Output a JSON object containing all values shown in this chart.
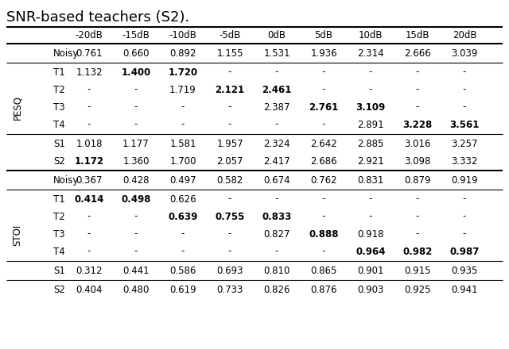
{
  "title": "SNR-based teachers (S2).",
  "col_headers": [
    "-20dB",
    "-15dB",
    "-10dB",
    "-5dB",
    "0dB",
    "5dB",
    "10dB",
    "15dB",
    "20dB"
  ],
  "pesq_section": {
    "noisy": [
      "0.761",
      "0.660",
      "0.892",
      "1.155",
      "1.531",
      "1.936",
      "2.314",
      "2.666",
      "3.039"
    ],
    "T1": [
      "1.132",
      "1.400",
      "1.720",
      "-",
      "-",
      "-",
      "-",
      "-",
      "-"
    ],
    "T2": [
      "-",
      "-",
      "1.719",
      "2.121",
      "2.461",
      "-",
      "-",
      "-",
      "-"
    ],
    "T3": [
      "-",
      "-",
      "-",
      "-",
      "2.387",
      "2.761",
      "3.109",
      "-",
      "-"
    ],
    "T4": [
      "-",
      "-",
      "-",
      "-",
      "-",
      "-",
      "2.891",
      "3.228",
      "3.561"
    ],
    "S1": [
      "1.018",
      "1.177",
      "1.581",
      "1.957",
      "2.324",
      "2.642",
      "2.885",
      "3.016",
      "3.257"
    ],
    "S2": [
      "1.172",
      "1.360",
      "1.700",
      "2.057",
      "2.417",
      "2.686",
      "2.921",
      "3.098",
      "3.332"
    ]
  },
  "stoi_section": {
    "noisy": [
      "0.367",
      "0.428",
      "0.497",
      "0.582",
      "0.674",
      "0.762",
      "0.831",
      "0.879",
      "0.919"
    ],
    "T1": [
      "0.414",
      "0.498",
      "0.626",
      "-",
      "-",
      "-",
      "-",
      "-",
      "-"
    ],
    "T2": [
      "-",
      "-",
      "0.639",
      "0.755",
      "0.833",
      "-",
      "-",
      "-",
      "-"
    ],
    "T3": [
      "-",
      "-",
      "-",
      "-",
      "0.827",
      "0.888",
      "0.918",
      "-",
      "-"
    ],
    "T4": [
      "-",
      "-",
      "-",
      "-",
      "-",
      "-",
      "0.964",
      "0.982",
      "0.987"
    ],
    "S1": [
      "0.312",
      "0.441",
      "0.586",
      "0.693",
      "0.810",
      "0.865",
      "0.901",
      "0.915",
      "0.935"
    ],
    "S2": [
      "0.404",
      "0.480",
      "0.619",
      "0.733",
      "0.826",
      "0.876",
      "0.903",
      "0.925",
      "0.941"
    ]
  },
  "pesq_bold": {
    "T1": [
      false,
      true,
      true,
      false,
      false,
      false,
      false,
      false,
      false
    ],
    "T2": [
      false,
      false,
      false,
      true,
      true,
      false,
      false,
      false,
      false
    ],
    "T3": [
      false,
      false,
      false,
      false,
      false,
      true,
      true,
      false,
      false
    ],
    "T4": [
      false,
      false,
      false,
      false,
      false,
      false,
      false,
      true,
      true
    ],
    "S1": [
      false,
      false,
      false,
      false,
      false,
      false,
      false,
      false,
      false
    ],
    "S2": [
      true,
      false,
      false,
      false,
      false,
      false,
      false,
      false,
      false
    ]
  },
  "stoi_bold": {
    "T1": [
      true,
      true,
      false,
      false,
      false,
      false,
      false,
      false,
      false
    ],
    "T2": [
      false,
      false,
      true,
      true,
      true,
      false,
      false,
      false,
      false
    ],
    "T3": [
      false,
      false,
      false,
      false,
      false,
      true,
      false,
      false,
      false
    ],
    "T4": [
      false,
      false,
      false,
      false,
      false,
      false,
      true,
      true,
      true
    ],
    "S1": [
      false,
      false,
      false,
      false,
      false,
      false,
      false,
      false,
      false
    ],
    "S2": [
      false,
      false,
      false,
      false,
      false,
      false,
      false,
      false,
      false
    ]
  },
  "title_fontsize": 13,
  "data_fontsize": 8.5,
  "header_fontsize": 8.5
}
